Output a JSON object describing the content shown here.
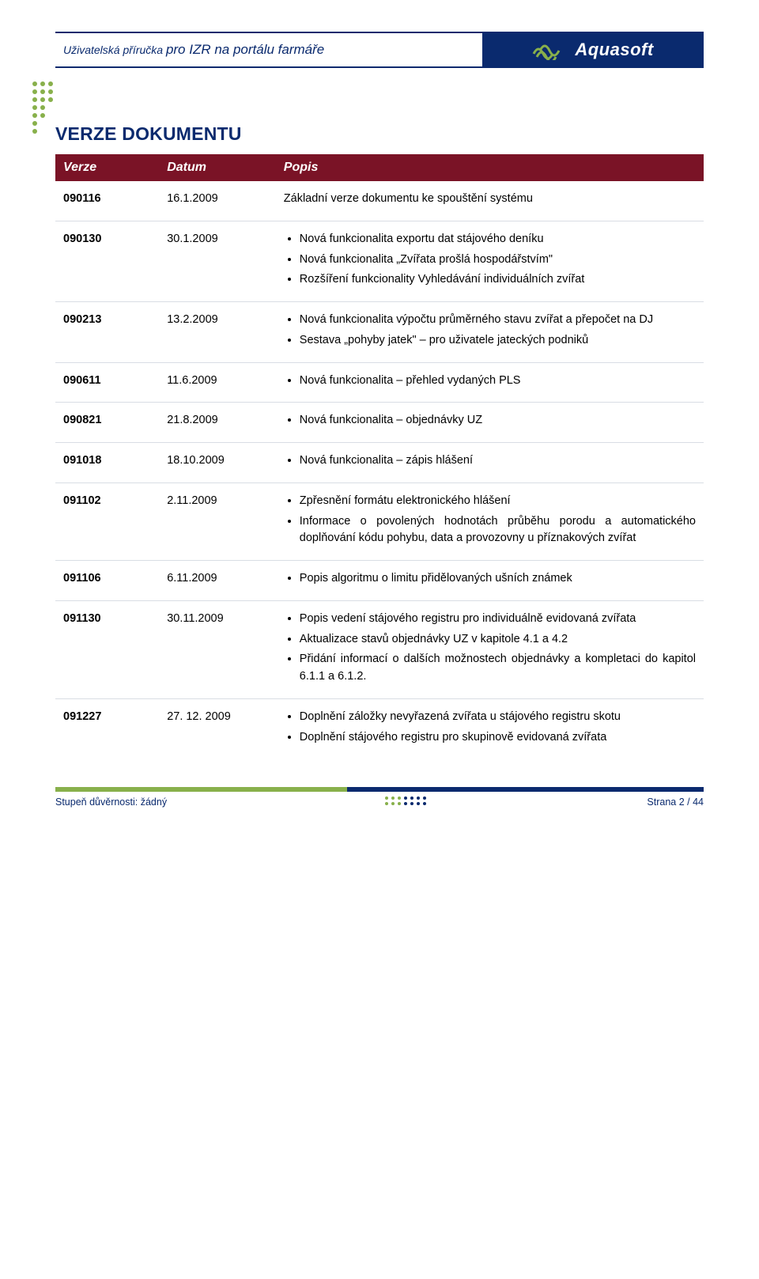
{
  "header": {
    "left_prefix": "Uživatelská příručka ",
    "left_em": "pro IZR na portálu farmáře",
    "brand": "Aquasoft"
  },
  "title": "VERZE DOKUMENTU",
  "columns": [
    "Verze",
    "Datum",
    "Popis"
  ],
  "rows": [
    {
      "ver": "090116",
      "date": "16.1.2009",
      "plain": "Základní verze dokumentu ke spouštění systému",
      "bullets": []
    },
    {
      "ver": "090130",
      "date": "30.1.2009",
      "plain": "",
      "bullets": [
        "Nová funkcionalita exportu dat stájového deníku",
        "Nová funkcionalita „Zvířata prošlá hospodářstvím\"",
        "Rozšíření funkcionality Vyhledávání individuálních zvířat"
      ]
    },
    {
      "ver": "090213",
      "date": "13.2.2009",
      "plain": "",
      "bullets": [
        "Nová funkcionalita výpočtu průměrného stavu zvířat a přepočet na DJ",
        "Sestava „pohyby jatek\" – pro uživatele jateckých podniků"
      ]
    },
    {
      "ver": "090611",
      "date": "11.6.2009",
      "plain": "",
      "bullets": [
        "Nová funkcionalita – přehled vydaných PLS"
      ]
    },
    {
      "ver": "090821",
      "date": "21.8.2009",
      "plain": "",
      "bullets": [
        "Nová funkcionalita – objednávky UZ"
      ]
    },
    {
      "ver": "091018",
      "date": "18.10.2009",
      "plain": "",
      "bullets": [
        "Nová funkcionalita – zápis hlášení"
      ]
    },
    {
      "ver": "091102",
      "date": "2.11.2009",
      "plain": "",
      "bullets": [
        "Zpřesnění formátu elektronického hlášení",
        "Informace o povolených hodnotách průběhu porodu a automatického doplňování kódu pohybu, data a provozovny u příznakových zvířat"
      ]
    },
    {
      "ver": "091106",
      "date": "6.11.2009",
      "plain": "",
      "bullets": [
        "Popis algoritmu o limitu přidělovaných ušních známek"
      ]
    },
    {
      "ver": "091130",
      "date": "30.11.2009",
      "plain": "",
      "bullets": [
        "Popis vedení stájového registru pro individuálně evidovaná zvířata",
        "Aktualizace stavů objednávky UZ v kapitole 4.1 a 4.2",
        "Přidání informací o dalších možnostech objednávky a kompletaci do kapitol 6.1.1 a 6.1.2."
      ]
    },
    {
      "ver": "091227",
      "date": "27. 12. 2009",
      "plain": "",
      "bullets": [
        "Doplnění záložky nevyřazená zvířata u stájového registru skotu",
        "Doplnění stájového registru pro skupinově evidovaná zvířata"
      ]
    }
  ],
  "footer": {
    "left": "Stupeň důvěrnosti: žádný",
    "right": "Strana 2 / 44"
  },
  "colors": {
    "navy": "#0a2a6e",
    "maroon": "#7a1326",
    "green_dot": "#88b04b"
  }
}
